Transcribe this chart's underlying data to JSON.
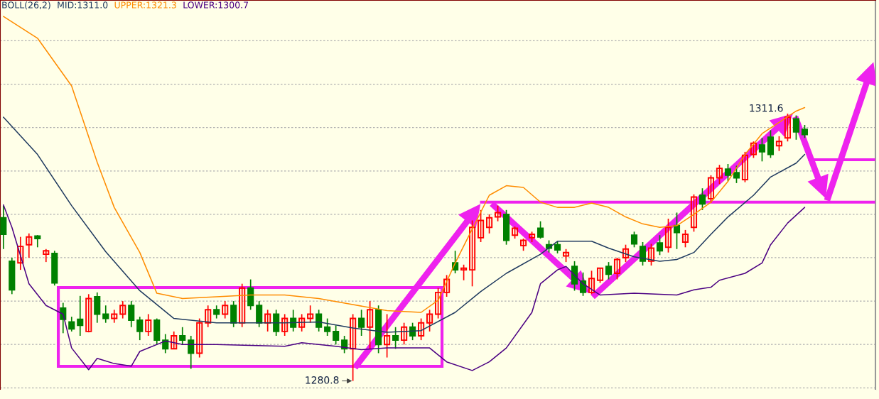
{
  "chart_data": {
    "type": "candlestick",
    "legend_title": "BOLL(26,2)",
    "legend": "top left",
    "grid": "y",
    "categories": [
      null,
      null,
      null,
      null,
      null,
      null,
      null,
      null,
      null,
      null,
      null,
      null,
      null,
      null,
      null,
      null,
      null,
      null,
      null,
      null,
      null,
      null,
      null,
      null,
      null,
      null,
      null,
      null,
      null,
      null,
      null,
      null,
      null,
      null,
      null,
      null,
      null,
      null,
      null,
      null,
      null,
      null,
      null,
      null,
      null,
      null,
      null,
      null,
      null,
      null,
      null,
      null,
      null,
      null,
      null,
      null,
      null,
      null,
      null,
      null,
      null,
      null,
      null,
      null,
      null,
      null,
      null,
      null,
      null,
      null,
      null,
      null,
      null,
      null,
      null,
      null,
      null,
      null,
      null,
      null,
      null,
      null,
      null,
      null,
      null,
      null,
      null,
      null,
      null,
      null,
      null,
      null,
      null,
      null,
      null
    ],
    "ohlc": [
      [
        1299.6,
        1301,
        1296,
        1297.7
      ],
      [
        1294.6,
        1295,
        1290.8,
        1291.3
      ],
      [
        1294.4,
        1297.4,
        1293.6,
        1296.3
      ],
      [
        1296.5,
        1297.8,
        1295,
        1297.4
      ],
      [
        1297.5,
        1297.6,
        1296.2,
        1297.2
      ],
      [
        1295.4,
        1296,
        1294.5,
        1295.8
      ],
      [
        1295.5,
        1295.8,
        1291.8,
        1292.1
      ],
      [
        1289.2,
        1289.8,
        1286.3,
        1287.9
      ],
      [
        1287.6,
        1288.2,
        1286.5,
        1286.8
      ],
      [
        1287.9,
        1290.6,
        1286,
        1287.2
      ],
      [
        1286.5,
        1290.8,
        1286.4,
        1290.3
      ],
      [
        1290.5,
        1291,
        1287.5,
        1288.5
      ],
      [
        1288.5,
        1289.5,
        1287.5,
        1288
      ],
      [
        1288,
        1289,
        1287.5,
        1288.5
      ],
      [
        1288.5,
        1290,
        1288,
        1289.5
      ],
      [
        1289.5,
        1290,
        1287,
        1287.8
      ],
      [
        1287.8,
        1288.2,
        1285.5,
        1286.5
      ],
      [
        1286.5,
        1288.5,
        1286,
        1287.8
      ],
      [
        1287.8,
        1288,
        1285,
        1285.5
      ],
      [
        1285.5,
        1286.2,
        1284,
        1284.5
      ],
      [
        1284.5,
        1286.5,
        1284.5,
        1286
      ],
      [
        1286,
        1287,
        1285,
        1285.5
      ],
      [
        1285.5,
        1286,
        1282.2,
        1284
      ],
      [
        1284,
        1288,
        1283.5,
        1287.5
      ],
      [
        1287.5,
        1289.5,
        1287,
        1289
      ],
      [
        1289,
        1289.5,
        1288,
        1288.5
      ],
      [
        1288.5,
        1290,
        1288,
        1289.5
      ],
      [
        1289.5,
        1290,
        1287,
        1287.5
      ],
      [
        1287.5,
        1292,
        1287,
        1291.5
      ],
      [
        1291.5,
        1292.5,
        1289,
        1289.5
      ],
      [
        1289.5,
        1290,
        1287,
        1287.5
      ],
      [
        1287.5,
        1289,
        1286.5,
        1288.5
      ],
      [
        1288.5,
        1289,
        1286,
        1286.5
      ],
      [
        1286.5,
        1288.5,
        1286,
        1288
      ],
      [
        1288,
        1289,
        1286.5,
        1287
      ],
      [
        1287,
        1288.5,
        1286.5,
        1288
      ],
      [
        1288,
        1289.5,
        1287.5,
        1288.5
      ],
      [
        1288.5,
        1289,
        1286.5,
        1287
      ],
      [
        1287,
        1288,
        1286,
        1286.5
      ],
      [
        1286.5,
        1287.2,
        1285,
        1285.5
      ],
      [
        1285.5,
        1286,
        1284,
        1284.5
      ],
      [
        1284.5,
        1288.5,
        1280.8,
        1288
      ],
      [
        1288,
        1289,
        1286,
        1287
      ],
      [
        1287,
        1290,
        1284.5,
        1289
      ],
      [
        1289,
        1289.5,
        1284,
        1285
      ],
      [
        1285,
        1288.5,
        1283.5,
        1286
      ],
      [
        1286,
        1287,
        1284.5,
        1285.5
      ],
      [
        1285.5,
        1287.5,
        1285,
        1287
      ],
      [
        1287,
        1287.5,
        1285.5,
        1286
      ],
      [
        1286,
        1288,
        1285.5,
        1287.5
      ],
      [
        1287.5,
        1289,
        1286.5,
        1288.5
      ],
      [
        1288.5,
        1291.5,
        1288,
        1291
      ],
      [
        1291,
        1293,
        1290.5,
        1292.5
      ],
      [
        1294.4,
        1295.8,
        1293.2,
        1293.6
      ],
      [
        1293.6,
        1294.2,
        1292.4,
        1293.8
      ],
      [
        1293.6,
        1299.3,
        1291.7,
        1298.5
      ],
      [
        1297.3,
        1300.5,
        1296.8,
        1299.3
      ],
      [
        1298.5,
        1300,
        1297.8,
        1299.6
      ],
      [
        1299.7,
        1301,
        1299.2,
        1300.2
      ],
      [
        1300,
        1300.5,
        1296.5,
        1297
      ],
      [
        1297.6,
        1298.6,
        1297.2,
        1298.4
      ],
      [
        1296.4,
        1297.2,
        1295.8,
        1297
      ],
      [
        1297.3,
        1298,
        1296.8,
        1297.7
      ],
      [
        1298.4,
        1299.2,
        1297.2,
        1297.4
      ],
      [
        1296.5,
        1297,
        1295.6,
        1296.1
      ],
      [
        1296.5,
        1296.9,
        1295.5,
        1295.9
      ],
      [
        1295.2,
        1296,
        1294.5,
        1295.6
      ],
      [
        1294,
        1294.6,
        1291.2,
        1292
      ],
      [
        1292.3,
        1293.3,
        1290.6,
        1291
      ],
      [
        1291,
        1293.5,
        1290.8,
        1292.6
      ],
      [
        1292.4,
        1293.8,
        1292.1,
        1293.8
      ],
      [
        1294,
        1294.5,
        1292.5,
        1293.1
      ],
      [
        1293.2,
        1295,
        1292.5,
        1294.8
      ],
      [
        1295,
        1296.5,
        1294.5,
        1296
      ],
      [
        1297.6,
        1298,
        1296.2,
        1296.6
      ],
      [
        1296.3,
        1296.8,
        1294.1,
        1294.6
      ],
      [
        1294.6,
        1296.6,
        1294.1,
        1296.1
      ],
      [
        1296.7,
        1297.6,
        1295.3,
        1295.8
      ],
      [
        1296.2,
        1299.5,
        1295.6,
        1298.5
      ],
      [
        1298.7,
        1300.2,
        1296,
        1297.9
      ],
      [
        1296.8,
        1298.2,
        1296.2,
        1297.7
      ],
      [
        1298.5,
        1302.3,
        1298,
        1302
      ],
      [
        1302.2,
        1303,
        1300.5,
        1301.2
      ],
      [
        1301.8,
        1304.5,
        1301.3,
        1304.2
      ],
      [
        1304.2,
        1305.7,
        1303.5,
        1305.3
      ],
      [
        1305.2,
        1305.8,
        1303.8,
        1304.5
      ],
      [
        1304.8,
        1305.6,
        1303.6,
        1304.2
      ],
      [
        1304,
        1307.2,
        1303.7,
        1306.8
      ],
      [
        1306.9,
        1308.4,
        1306.5,
        1308.2
      ],
      [
        1308,
        1308.8,
        1306.1,
        1307.2
      ],
      [
        1308.9,
        1309.7,
        1306.5,
        1306.9
      ],
      [
        1307.9,
        1309,
        1307.3,
        1308.4
      ],
      [
        1308.8,
        1311.6,
        1308.4,
        1311.2
      ],
      [
        1311,
        1311.4,
        1308.6,
        1309.5
      ],
      [
        1309.8,
        1310.3,
        1308.8,
        1309.2
      ]
    ],
    "series": [
      {
        "name": "MID:1311.0",
        "type": "line",
        "color": "#1f3a5f",
        "values": [
          1311.2,
          null,
          null,
          null,
          1306.9,
          null,
          null,
          null,
          1301,
          null,
          null,
          null,
          1295.7,
          null,
          null,
          null,
          1291.2,
          null,
          null,
          null,
          1288,
          null,
          null,
          null,
          null,
          1287.5,
          null,
          null,
          null,
          1287.5,
          null,
          null,
          null,
          1287.5,
          null,
          null,
          null,
          1287.6,
          null,
          null,
          null,
          1286.9,
          null,
          null,
          null,
          1286.4,
          null,
          null,
          null,
          1286.6,
          null,
          null,
          null,
          1288.7,
          null,
          null,
          1291.1,
          null,
          null,
          1293.2,
          null,
          null,
          null,
          1295.4,
          null,
          1296.9,
          null,
          null,
          null,
          1296.9,
          null,
          1296.1,
          null,
          null,
          1295.1,
          null,
          null,
          1294.6,
          null,
          1294.8,
          null,
          1295.6,
          null,
          1297.7,
          null,
          1299.7,
          null,
          null,
          1302.2,
          null,
          1304.3,
          null,
          null,
          1305.9,
          1306.9
        ]
      },
      {
        "name": "UPPER:1321.3",
        "type": "line",
        "color": "#ff8c00",
        "values": [
          1322.8,
          null,
          null,
          null,
          1320.3,
          null,
          null,
          null,
          1314.8,
          null,
          null,
          1306,
          null,
          1300.8,
          null,
          null,
          1295.6,
          null,
          1290.9,
          null,
          null,
          1290.3,
          null,
          null,
          null,
          1290.5,
          null,
          null,
          null,
          1290.7,
          null,
          null,
          null,
          1290.7,
          null,
          null,
          null,
          1290.3,
          null,
          null,
          null,
          1289.6,
          null,
          null,
          null,
          1288.9,
          null,
          null,
          null,
          1288.7,
          null,
          1290.1,
          null,
          1294.4,
          null,
          1298.3,
          null,
          1302.2,
          null,
          1303.3,
          null,
          1303.1,
          null,
          1301.4,
          null,
          1300.8,
          null,
          1300.8,
          null,
          1301.3,
          null,
          1300.8,
          null,
          1299.7,
          null,
          1298.9,
          null,
          1298.5,
          null,
          1298.7,
          null,
          1300,
          null,
          1301.4,
          null,
          1303.8,
          null,
          1306.9,
          null,
          1309.3,
          null,
          1310.6,
          null,
          1311.9,
          1312.3
        ]
      },
      {
        "name": "LOWER:1300.7",
        "type": "line",
        "color": "#4b0082",
        "values": [
          1301.1,
          1298.5,
          null,
          1292,
          null,
          1289.5,
          null,
          1288.5,
          1284.6,
          null,
          1282.1,
          1283.4,
          null,
          1282.8,
          null,
          1282.5,
          1284.2,
          null,
          null,
          1285.4,
          null,
          1285,
          null,
          null,
          null,
          1285,
          null,
          null,
          null,
          1284.9,
          null,
          null,
          null,
          1284.8,
          null,
          1285.2,
          null,
          null,
          null,
          1284.8,
          null,
          null,
          1284.4,
          null,
          null,
          1284.6,
          null,
          null,
          1284.6,
          null,
          1284.6,
          null,
          1283,
          null,
          null,
          1282,
          null,
          1283,
          null,
          1284.6,
          null,
          null,
          1288.7,
          1292,
          null,
          1293.6,
          1294,
          null,
          1292,
          null,
          1290.7,
          null,
          null,
          null,
          1290.9,
          null,
          null,
          null,
          null,
          1290.7,
          null,
          1291.3,
          null,
          1291.6,
          1292.4,
          null,
          null,
          1293.2,
          null,
          1294.4,
          1296.5,
          null,
          1299,
          null,
          1300.8
        ]
      }
    ],
    "ylim": [
      1279.7,
      1324.7
    ],
    "yticks": [
      {
        "value": 1280,
        "label": null
      },
      {
        "value": 1285,
        "label": null
      },
      {
        "value": 1290,
        "label": null
      },
      {
        "value": 1295,
        "label": null
      },
      {
        "value": 1300,
        "label": null
      },
      {
        "value": 1305,
        "label": null
      },
      {
        "value": 1310,
        "label": null
      },
      {
        "value": 1315,
        "label": null
      },
      {
        "value": 1320,
        "label": null
      }
    ],
    "ref_lines": [
      {
        "axis": "y",
        "value": 1301.4,
        "color": "#ee22ee"
      }
    ],
    "annotations": [
      "1311.6",
      "1280.8"
    ]
  }
}
